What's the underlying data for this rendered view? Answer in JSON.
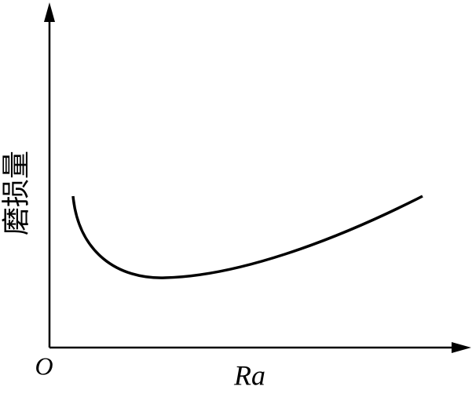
{
  "axes": {
    "origin": "O",
    "x_label": "Ra",
    "y_label": "磨损量"
  }
}
